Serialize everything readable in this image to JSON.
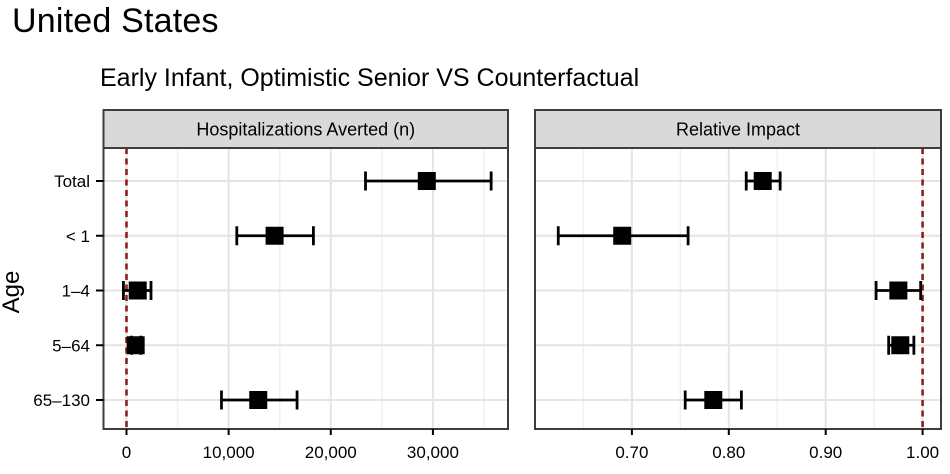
{
  "page": {
    "title": "United States",
    "subtitle": "Early Infant, Optimistic Senior VS Counterfactual"
  },
  "ylabel": "Age",
  "age_groups": [
    "Total",
    "< 1",
    "1–4",
    "5–64",
    "65–130"
  ],
  "colors": {
    "background": "#ffffff",
    "text": "#000000",
    "strip_bg": "#d9d9d9",
    "panel_border": "#3d3d3d",
    "grid_major": "#e4e4e4",
    "grid_minor": "#f0f0f0",
    "marker": "#000000",
    "ref_line": "#8b2020"
  },
  "chart_data": [
    {
      "type": "scatter",
      "subtype": "horizontal point-range (forest plot)",
      "panel_label": "Hospitalizations Averted (n)",
      "categories": [
        "Total",
        "< 1",
        "1–4",
        "5–64",
        "65–130"
      ],
      "series": [
        {
          "age": "Total",
          "estimate": 29400,
          "lower": 23400,
          "upper": 35700
        },
        {
          "age": "< 1",
          "estimate": 14500,
          "lower": 10800,
          "upper": 18300
        },
        {
          "age": "1–4",
          "estimate": 1100,
          "lower": -300,
          "upper": 2400
        },
        {
          "age": "5–64",
          "estimate": 900,
          "lower": 500,
          "upper": 1400
        },
        {
          "age": "65–130",
          "estimate": 12900,
          "lower": 9300,
          "upper": 16700
        }
      ],
      "x_ticks": [
        0,
        10000,
        20000,
        30000
      ],
      "x_tick_labels": [
        "0",
        "10,000",
        "20,000",
        "30,000"
      ],
      "x_minor_ticks": [
        5000,
        15000,
        25000,
        35000
      ],
      "xlim": [
        -2250,
        37350
      ],
      "ref_line_x": 0,
      "grid": true,
      "legend": "none"
    },
    {
      "type": "scatter",
      "subtype": "horizontal point-range (forest plot)",
      "panel_label": "Relative Impact",
      "categories": [
        "Total",
        "< 1",
        "1–4",
        "5–64",
        "65–130"
      ],
      "series": [
        {
          "age": "Total",
          "estimate": 0.835,
          "lower": 0.818,
          "upper": 0.853
        },
        {
          "age": "< 1",
          "estimate": 0.69,
          "lower": 0.624,
          "upper": 0.758
        },
        {
          "age": "1–4",
          "estimate": 0.975,
          "lower": 0.952,
          "upper": 0.998
        },
        {
          "age": "5–64",
          "estimate": 0.977,
          "lower": 0.965,
          "upper": 0.991
        },
        {
          "age": "65–130",
          "estimate": 0.784,
          "lower": 0.755,
          "upper": 0.813
        }
      ],
      "x_ticks": [
        0.7,
        0.8,
        0.9,
        1.0
      ],
      "x_tick_labels": [
        "0.70",
        "0.80",
        "0.90",
        "1.00"
      ],
      "x_minor_ticks": [
        0.65,
        0.75,
        0.85,
        0.95
      ],
      "xlim": [
        0.6,
        1.019
      ],
      "ref_line_x": 1.0,
      "grid": true,
      "legend": "none"
    }
  ]
}
